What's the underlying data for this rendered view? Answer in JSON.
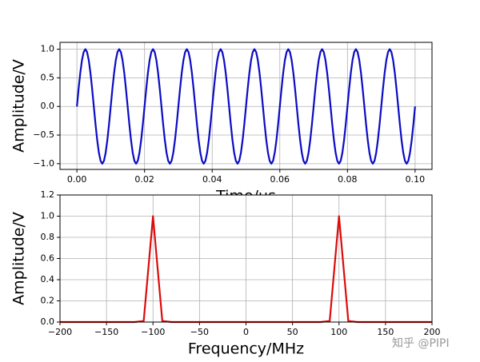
{
  "chart_data": [
    {
      "type": "line",
      "xlabel": "Time/us",
      "ylabel": "Amplitude/V",
      "x": [
        0,
        0.0005,
        0.001,
        0.0015,
        0.002,
        0.0025,
        0.003,
        0.0035,
        0.004,
        0.0045,
        0.005,
        0.0055,
        0.006,
        0.0065,
        0.007,
        0.0075,
        0.008,
        0.0085,
        0.009,
        0.0095,
        0.01,
        0.0105,
        0.011,
        0.0115,
        0.012,
        0.0125,
        0.013,
        0.0135,
        0.014,
        0.0145,
        0.015,
        0.0155,
        0.016,
        0.0165,
        0.017,
        0.0175,
        0.018,
        0.0185,
        0.019,
        0.0195,
        0.02,
        0.0205,
        0.021,
        0.0215,
        0.022,
        0.0225,
        0.023,
        0.0235,
        0.024,
        0.0245,
        0.025,
        0.0255,
        0.026,
        0.0265,
        0.027,
        0.0275,
        0.028,
        0.0285,
        0.029,
        0.0295,
        0.03,
        0.0305,
        0.031,
        0.0315,
        0.032,
        0.0325,
        0.033,
        0.0335,
        0.034,
        0.0345,
        0.035,
        0.0355,
        0.036,
        0.0365,
        0.037,
        0.0375,
        0.038,
        0.0385,
        0.039,
        0.0395,
        0.04,
        0.0405,
        0.041,
        0.0415,
        0.042,
        0.0425,
        0.043,
        0.0435,
        0.044,
        0.0445,
        0.045,
        0.0455,
        0.046,
        0.0465,
        0.047,
        0.0475,
        0.048,
        0.0485,
        0.049,
        0.0495,
        0.05,
        0.0505,
        0.051,
        0.0515,
        0.052,
        0.0525,
        0.053,
        0.0535,
        0.054,
        0.0545,
        0.055,
        0.0555,
        0.056,
        0.0565,
        0.057,
        0.0575,
        0.058,
        0.0585,
        0.059,
        0.0595,
        0.06,
        0.0605,
        0.061,
        0.0615,
        0.062,
        0.0625,
        0.063,
        0.0635,
        0.064,
        0.0645,
        0.065,
        0.0655,
        0.066,
        0.0665,
        0.067,
        0.0675,
        0.068,
        0.0685,
        0.069,
        0.0695,
        0.07,
        0.0705,
        0.071,
        0.0715,
        0.072,
        0.0725,
        0.073,
        0.0735,
        0.074,
        0.0745,
        0.075,
        0.0755,
        0.076,
        0.0765,
        0.077,
        0.0775,
        0.078,
        0.0785,
        0.079,
        0.0795,
        0.08,
        0.0805,
        0.081,
        0.0815,
        0.082,
        0.0825,
        0.083,
        0.0835,
        0.084,
        0.0845,
        0.085,
        0.0855,
        0.086,
        0.0865,
        0.087,
        0.0875,
        0.088,
        0.0885,
        0.089,
        0.0895,
        0.09,
        0.0905,
        0.091,
        0.0915,
        0.092,
        0.0925,
        0.093,
        0.0935,
        0.094,
        0.0945,
        0.095,
        0.0955,
        0.096,
        0.0965,
        0.097,
        0.0975,
        0.098,
        0.0985,
        0.099,
        0.0995,
        0.1
      ],
      "series": [
        {
          "color": "#0b0bc4",
          "values": [
            0,
            0.309,
            0.588,
            0.809,
            0.951,
            1,
            0.951,
            0.809,
            0.588,
            0.309,
            0,
            -0.309,
            -0.588,
            -0.809,
            -0.951,
            -1,
            -0.951,
            -0.809,
            -0.588,
            -0.309,
            0,
            0.309,
            0.588,
            0.809,
            0.951,
            1,
            0.951,
            0.809,
            0.588,
            0.309,
            0,
            -0.309,
            -0.588,
            -0.809,
            -0.951,
            -1,
            -0.951,
            -0.809,
            -0.588,
            -0.309,
            0,
            0.309,
            0.588,
            0.809,
            0.951,
            1,
            0.951,
            0.809,
            0.588,
            0.309,
            0,
            -0.309,
            -0.588,
            -0.809,
            -0.951,
            -1,
            -0.951,
            -0.809,
            -0.588,
            -0.309,
            0,
            0.309,
            0.588,
            0.809,
            0.951,
            1,
            0.951,
            0.809,
            0.588,
            0.309,
            0,
            -0.309,
            -0.588,
            -0.809,
            -0.951,
            -1,
            -0.951,
            -0.809,
            -0.588,
            -0.309,
            0,
            0.309,
            0.588,
            0.809,
            0.951,
            1,
            0.951,
            0.809,
            0.588,
            0.309,
            0,
            -0.309,
            -0.588,
            -0.809,
            -0.951,
            -1,
            -0.951,
            -0.809,
            -0.588,
            -0.309,
            0,
            0.309,
            0.588,
            0.809,
            0.951,
            1,
            0.951,
            0.809,
            0.588,
            0.309,
            0,
            -0.309,
            -0.588,
            -0.809,
            -0.951,
            -1,
            -0.951,
            -0.809,
            -0.588,
            -0.309,
            0,
            0.309,
            0.588,
            0.809,
            0.951,
            1,
            0.951,
            0.809,
            0.588,
            0.309,
            0,
            -0.309,
            -0.588,
            -0.809,
            -0.951,
            -1,
            -0.951,
            -0.809,
            -0.588,
            -0.309,
            0,
            0.309,
            0.588,
            0.809,
            0.951,
            1,
            0.951,
            0.809,
            0.588,
            0.309,
            0,
            -0.309,
            -0.588,
            -0.809,
            -0.951,
            -1,
            -0.951,
            -0.809,
            -0.588,
            -0.309,
            0,
            0.309,
            0.588,
            0.809,
            0.951,
            1,
            0.951,
            0.809,
            0.588,
            0.309,
            0,
            -0.309,
            -0.588,
            -0.809,
            -0.951,
            -1,
            -0.951,
            -0.809,
            -0.588,
            -0.309,
            0,
            0.309,
            0.588,
            0.809,
            0.951,
            1,
            0.951,
            0.809,
            0.588,
            0.309,
            0,
            -0.309,
            -0.588,
            -0.809,
            -0.951,
            -1,
            -0.951,
            -0.809,
            -0.588,
            -0.309,
            0
          ]
        }
      ],
      "xlim": [
        -0.005,
        0.105
      ],
      "ylim": [
        -1.1,
        1.12
      ],
      "xticks": [
        {
          "value": 0,
          "label": "0.00"
        },
        {
          "value": 0.02,
          "label": "0.02"
        },
        {
          "value": 0.04,
          "label": "0.04"
        },
        {
          "value": 0.06,
          "label": "0.06"
        },
        {
          "value": 0.08,
          "label": "0.08"
        },
        {
          "value": 0.1,
          "label": "0.10"
        }
      ],
      "yticks": [
        {
          "value": -1,
          "label": "−1.0"
        },
        {
          "value": -0.5,
          "label": "−0.5"
        },
        {
          "value": 0,
          "label": "0.0"
        },
        {
          "value": 0.5,
          "label": "0.5"
        },
        {
          "value": 1,
          "label": "1.0"
        }
      ],
      "grid": true
    },
    {
      "type": "line",
      "xlabel": "Frequency/MHz",
      "ylabel": "Amplitude/V",
      "x": [
        -200,
        -190,
        -180,
        -170,
        -160,
        -150,
        -140,
        -130,
        -120,
        -110,
        -100,
        -90,
        -80,
        -70,
        -60,
        -50,
        -40,
        -30,
        -20,
        -10,
        0,
        10,
        20,
        30,
        40,
        50,
        60,
        70,
        80,
        90,
        100,
        110,
        120,
        130,
        140,
        150,
        160,
        170,
        180,
        190,
        200
      ],
      "series": [
        {
          "color": "#dd0a0a",
          "values": [
            0,
            0,
            0,
            0,
            0,
            0,
            0,
            0,
            0,
            0.01,
            1,
            0.01,
            0,
            0,
            0,
            0,
            0,
            0,
            0,
            0,
            0,
            0,
            0,
            0,
            0,
            0,
            0,
            0,
            0,
            0.01,
            1,
            0.01,
            0,
            0,
            0,
            0,
            0,
            0,
            0,
            0,
            0
          ]
        }
      ],
      "xlim": [
        -200,
        200
      ],
      "ylim": [
        0,
        1.2
      ],
      "xticks": [
        {
          "value": -200,
          "label": "−200"
        },
        {
          "value": -150,
          "label": "−150"
        },
        {
          "value": -100,
          "label": "−100"
        },
        {
          "value": -50,
          "label": "−50"
        },
        0,
        50,
        100,
        150,
        200
      ],
      "yticks": [
        {
          "value": 0,
          "label": "0.0"
        },
        {
          "value": 0.2,
          "label": "0.2"
        },
        {
          "value": 0.4,
          "label": "0.4"
        },
        {
          "value": 0.6,
          "label": "0.6"
        },
        {
          "value": 0.8,
          "label": "0.8"
        },
        {
          "value": 1,
          "label": "1.0"
        },
        {
          "value": 1.2,
          "label": "1.2"
        }
      ],
      "grid": true
    }
  ],
  "watermark": "知乎 @PIPI"
}
